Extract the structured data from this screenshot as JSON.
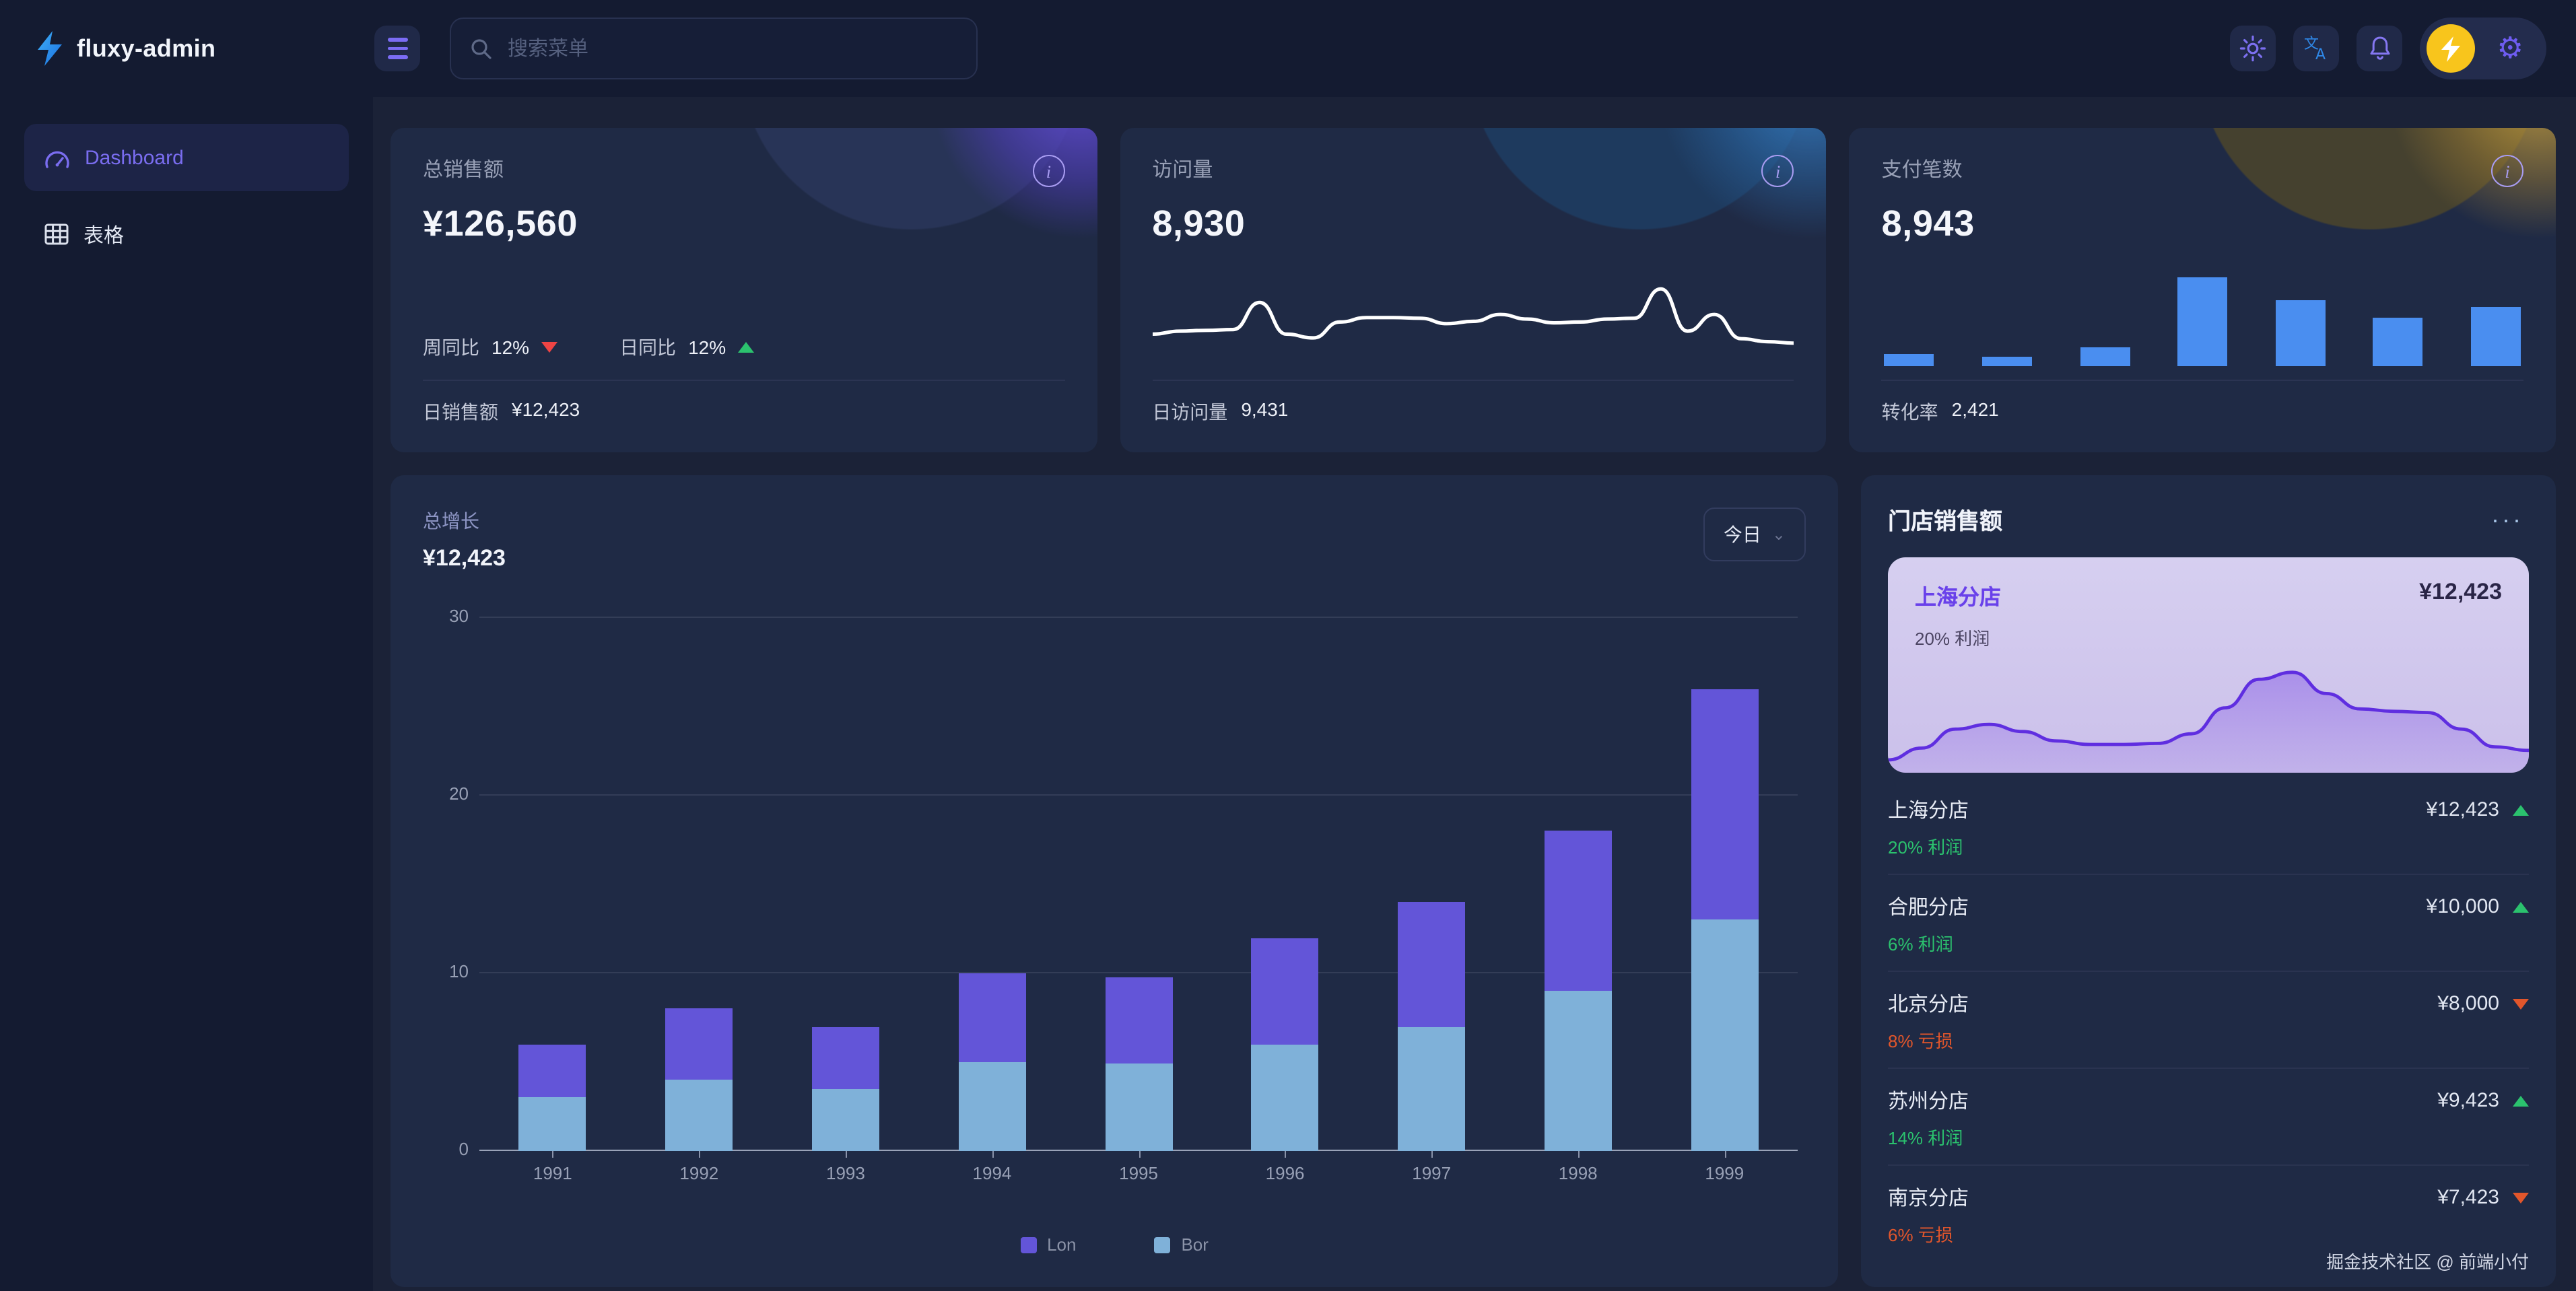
{
  "app": {
    "title": "fluxy-admin"
  },
  "header": {
    "search_placeholder": "搜索菜单",
    "icons": [
      "menu-icon",
      "search-icon",
      "sun-icon",
      "translate-icon",
      "bell-icon",
      "lightning-avatar",
      "gear-icon"
    ]
  },
  "sidebar": {
    "items": [
      {
        "label": "Dashboard",
        "icon": "gauge-icon",
        "active": true
      },
      {
        "label": "表格",
        "icon": "table-icon",
        "active": false
      }
    ]
  },
  "stats": [
    {
      "title": "总销售额",
      "value": "¥126,560",
      "trends": [
        {
          "label": "周同比",
          "value": "12%",
          "direction": "down"
        },
        {
          "label": "日同比",
          "value": "12%",
          "direction": "up"
        }
      ],
      "footer_label": "日销售额",
      "footer_value": "¥12,423"
    },
    {
      "title": "访问量",
      "value": "8,930",
      "footer_label": "日访问量",
      "footer_value": "9,431"
    },
    {
      "title": "支付笔数",
      "value": "8,943",
      "footer_label": "转化率",
      "footer_value": "2,421"
    }
  ],
  "growth_card": {
    "title": "总增长",
    "value": "¥12,423",
    "range_label": "今日"
  },
  "stores_panel": {
    "title": "门店销售额",
    "more_label": "···",
    "highlight": {
      "name": "上海分店",
      "value": "¥12,423",
      "sub": "20% 利润"
    },
    "rows": [
      {
        "name": "上海分店",
        "value": "¥12,423",
        "direction": "up",
        "sub": "20% 利润"
      },
      {
        "name": "合肥分店",
        "value": "¥10,000",
        "direction": "up",
        "sub": "6% 利润"
      },
      {
        "name": "北京分店",
        "value": "¥8,000",
        "direction": "down",
        "sub": "8% 亏损"
      },
      {
        "name": "苏州分店",
        "value": "¥9,423",
        "direction": "up",
        "sub": "14% 利润"
      },
      {
        "name": "南京分店",
        "value": "¥7,423",
        "direction": "down",
        "sub": "6% 亏损"
      }
    ],
    "credit": "掘金技术社区 @ 前端小付"
  },
  "chart_data": [
    {
      "id": "visits_trend",
      "type": "line",
      "title": "访问量迷你趋势",
      "color": "#ffffff",
      "values": [
        30,
        34,
        35,
        36,
        72,
        30,
        25,
        46,
        52,
        52,
        51,
        44,
        47,
        56,
        50,
        45,
        46,
        50,
        51,
        90,
        34,
        56,
        24,
        20,
        18
      ]
    },
    {
      "id": "payments_mini",
      "type": "bar",
      "title": "支付笔数迷你柱状图",
      "color": "#4a8ef0",
      "values": [
        13,
        10,
        21,
        100,
        75,
        55,
        67
      ]
    },
    {
      "id": "growth",
      "type": "bar",
      "stacked": true,
      "title": "总增长",
      "categories": [
        "1991",
        "1992",
        "1993",
        "1994",
        "1995",
        "1996",
        "1997",
        "1998",
        "1999"
      ],
      "series": [
        {
          "name": "Lon",
          "color": "#6355d8",
          "values": [
            3,
            4,
            3.5,
            5,
            4.9,
            6,
            7,
            9,
            13
          ]
        },
        {
          "name": "Bor",
          "color": "#7fb1d9",
          "values": [
            3,
            4,
            3.5,
            5,
            4.9,
            6,
            7,
            9,
            13
          ]
        }
      ],
      "ylim": [
        0,
        30
      ],
      "yticks": [
        0,
        10,
        20,
        30
      ],
      "grid": true,
      "legend_position": "bottom"
    },
    {
      "id": "store_area",
      "type": "area",
      "title": "上海分店销售走势",
      "color": "#5f2ee0",
      "values": [
        4,
        14,
        30,
        34,
        28,
        20,
        17,
        17,
        18,
        26,
        48,
        72,
        78,
        60,
        47,
        45,
        44,
        30,
        15,
        12
      ]
    }
  ],
  "colors": {
    "accent_purple": "#6c5ce7",
    "bar_purple": "#6355d8",
    "bar_blue": "#7fb1d9",
    "mini_bar_blue": "#4a8ef0",
    "up_green": "#2bc26e",
    "down_orange": "#e2562b",
    "down_red": "#ef4444",
    "avatar_yellow": "#f8c51c",
    "logo_blue": "#2e9bf0"
  }
}
